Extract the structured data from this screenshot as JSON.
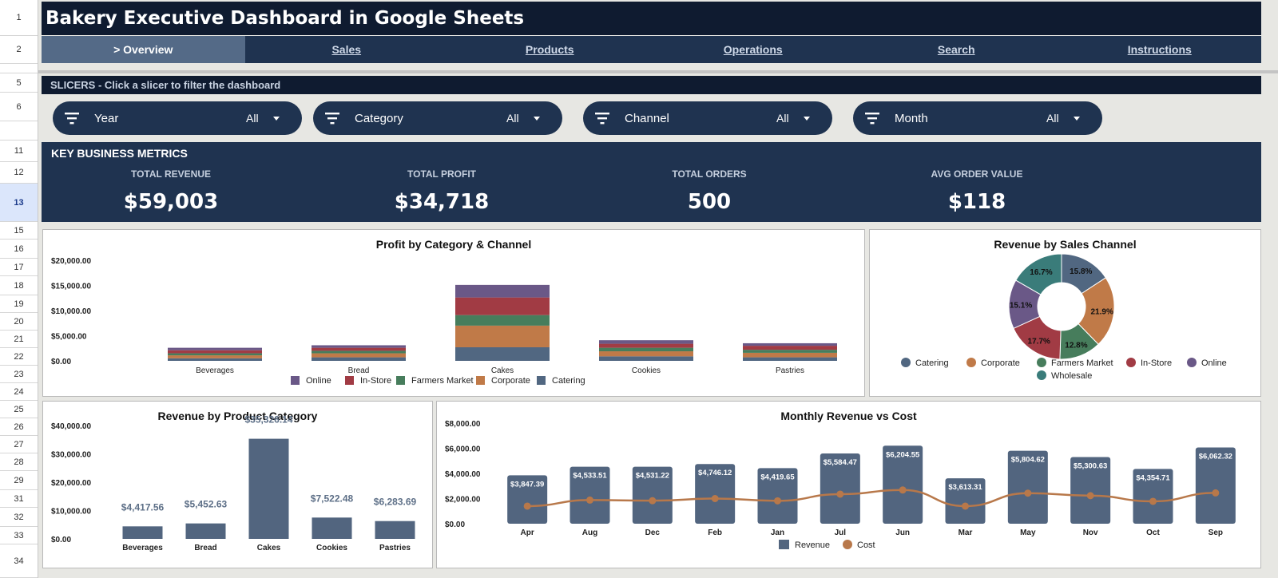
{
  "app": {
    "title": "Bakery Executive Dashboard in Google Sheets"
  },
  "row_numbers": [
    "1",
    "2",
    "",
    "5",
    "6",
    "",
    "11",
    "12",
    "13",
    "15",
    "16",
    "17",
    "18",
    "19",
    "20",
    "21",
    "22",
    "23",
    "24",
    "25",
    "26",
    "27",
    "28",
    "29",
    "31",
    "32",
    "33",
    "34"
  ],
  "nav": {
    "tabs": [
      {
        "label": "> Overview",
        "active": true
      },
      {
        "label": "Sales",
        "active": false
      },
      {
        "label": "Products",
        "active": false
      },
      {
        "label": "Operations",
        "active": false
      },
      {
        "label": "Search",
        "active": false
      },
      {
        "label": "Instructions",
        "active": false
      }
    ]
  },
  "slicers": {
    "header": "SLICERS - Click a slicer to filter the dashboard",
    "items": [
      {
        "label": "Year",
        "value": "All"
      },
      {
        "label": "Category",
        "value": "All"
      },
      {
        "label": "Channel",
        "value": "All"
      },
      {
        "label": "Month",
        "value": "All"
      }
    ]
  },
  "kpis": {
    "header": "KEY BUSINESS METRICS",
    "items": [
      {
        "label": "TOTAL REVENUE",
        "value": "$59,003"
      },
      {
        "label": "TOTAL PROFIT",
        "value": "$34,718"
      },
      {
        "label": "TOTAL ORDERS",
        "value": "500"
      },
      {
        "label": "AVG ORDER VALUE",
        "value": "$118"
      }
    ]
  },
  "colors": {
    "navy": "#1f3350",
    "dark_navy": "#0f1b30",
    "online": "#6a5887",
    "in_store": "#a13b44",
    "farmers_market": "#477d5c",
    "corporate": "#c07a48",
    "catering": "#516781",
    "wholesale": "#3a7c7a",
    "bar": "#52657f",
    "cost_line": "#b8784a"
  },
  "chart_data": [
    {
      "id": "profit_by_category_channel",
      "type": "bar",
      "stacked": true,
      "title": "Profit by Category & Channel",
      "categories": [
        "Beverages",
        "Bread",
        "Cakes",
        "Cookies",
        "Pastries"
      ],
      "ylim": [
        0,
        20000
      ],
      "yticks": [
        "$0.00",
        "$5,000.00",
        "$10,000.00",
        "$15,000.00",
        "$20,000.00"
      ],
      "legend": [
        "Online",
        "In-Store",
        "Farmers Market",
        "Corporate",
        "Catering"
      ],
      "series": [
        {
          "name": "Catering",
          "values": [
            500,
            700,
            2700,
            900,
            700
          ]
        },
        {
          "name": "Corporate",
          "values": [
            600,
            800,
            4300,
            1000,
            900
          ]
        },
        {
          "name": "Farmers Market",
          "values": [
            400,
            500,
            2100,
            700,
            600
          ]
        },
        {
          "name": "In-Store",
          "values": [
            600,
            600,
            3500,
            800,
            800
          ]
        },
        {
          "name": "Online",
          "values": [
            500,
            500,
            2500,
            700,
            500
          ]
        }
      ]
    },
    {
      "id": "revenue_by_channel",
      "type": "pie",
      "donut": true,
      "title": "Revenue by Sales Channel",
      "legend": [
        "Catering",
        "Corporate",
        "Farmers Market",
        "In-Store",
        "Online",
        "Wholesale"
      ],
      "slices": [
        {
          "name": "Catering",
          "value": 15.8,
          "label": "15.8%"
        },
        {
          "name": "Corporate",
          "value": 21.9,
          "label": "21.9%"
        },
        {
          "name": "Farmers Market",
          "value": 12.8,
          "label": "12.8%"
        },
        {
          "name": "In-Store",
          "value": 17.7,
          "label": "17.7%"
        },
        {
          "name": "Online",
          "value": 15.1,
          "label": "15.1%"
        },
        {
          "name": "Wholesale",
          "value": 16.7,
          "label": "16.7%"
        }
      ]
    },
    {
      "id": "revenue_by_category",
      "type": "bar",
      "title": "Revenue by Product Category",
      "categories": [
        "Beverages",
        "Bread",
        "Cakes",
        "Cookies",
        "Pastries"
      ],
      "values": [
        4417.56,
        5452.63,
        35326.14,
        7522.48,
        6283.69
      ],
      "labels": [
        "$4,417.56",
        "$5,452.63",
        "$35,326.14",
        "$7,522.48",
        "$6,283.69"
      ],
      "ylim": [
        0,
        40000
      ],
      "yticks": [
        "$0.00",
        "$10,000.00",
        "$20,000.00",
        "$30,000.00",
        "$40,000.00"
      ]
    },
    {
      "id": "monthly_revenue_cost",
      "type": "bar",
      "title": "Monthly Revenue vs Cost",
      "categories": [
        "Apr",
        "Aug",
        "Dec",
        "Feb",
        "Jan",
        "Jul",
        "Jun",
        "Mar",
        "May",
        "Nov",
        "Oct",
        "Sep"
      ],
      "ylim": [
        0,
        8000
      ],
      "yticks": [
        "$0.00",
        "$2,000.00",
        "$4,000.00",
        "$6,000.00",
        "$8,000.00"
      ],
      "legend": [
        "Revenue",
        "Cost"
      ],
      "series": [
        {
          "name": "Revenue",
          "type": "bar",
          "values": [
            3847.39,
            4533.51,
            4531.22,
            4746.12,
            4419.65,
            5584.47,
            6204.55,
            3613.31,
            5804.62,
            5300.63,
            4354.71,
            6062.32
          ],
          "labels": [
            "$3,847.39",
            "$4,533.51",
            "$4,531.22",
            "$4,746.12",
            "$4,419.65",
            "$5,584.47",
            "$6,204.55",
            "$3,613.31",
            "$5,804.62",
            "$5,300.63",
            "$4,354.71",
            "$6,062.32"
          ]
        },
        {
          "name": "Cost",
          "type": "line",
          "values": [
            1400,
            1880,
            1830,
            2000,
            1820,
            2350,
            2680,
            1400,
            2430,
            2230,
            1780,
            2450
          ]
        }
      ]
    }
  ]
}
